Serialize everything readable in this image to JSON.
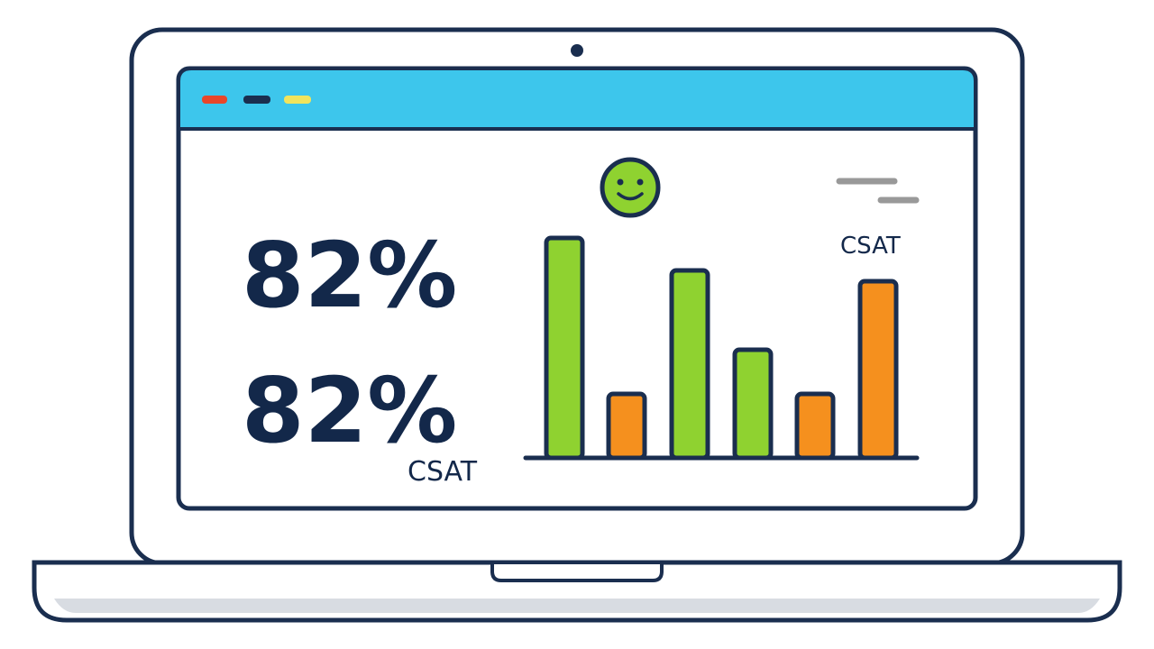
{
  "dashboard": {
    "big_numbers": [
      "82%",
      "82%"
    ],
    "big_caption": "CSAT",
    "chart_caption": "CSAT"
  }
}
